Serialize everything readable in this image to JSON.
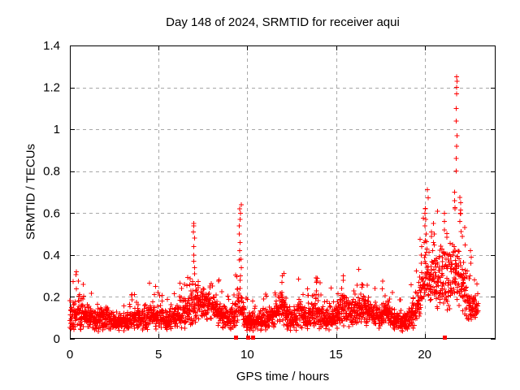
{
  "chart_data": {
    "type": "scatter",
    "title": "Day 148 of 2024, SRMTID for receiver aqui",
    "xlabel": "GPS time / hours",
    "ylabel": "SRMTID / TECUs",
    "xlim": [
      0,
      24
    ],
    "ylim": [
      0,
      1.4
    ],
    "xticks": [
      [
        0,
        "0"
      ],
      [
        5,
        "5"
      ],
      [
        10,
        "10"
      ],
      [
        15,
        "15"
      ],
      [
        20,
        "20"
      ]
    ],
    "yticks": [
      [
        0,
        "0"
      ],
      [
        0.2,
        "0.2"
      ],
      [
        0.4,
        "0.4"
      ],
      [
        0.6,
        "0.6"
      ],
      [
        0.8,
        "0.8"
      ],
      [
        1,
        "1"
      ],
      [
        1.2,
        "1.2"
      ],
      [
        1.4,
        "1.4"
      ]
    ],
    "grid": true,
    "legend": null,
    "marker": "plus",
    "colors": {
      "marker": "#ff0000",
      "grid": "#a8a8a8",
      "axis": "#000000",
      "background": "#ffffff"
    },
    "series_description": "SRMTID scintillation-like index vs GPS time; dense noisy band ~0.1 TECU with storm-time spikes",
    "baseline": {
      "start_hour": 0,
      "end_hour": 23.0,
      "points_per_hour": 115,
      "seed": 148,
      "envelope": [
        [
          0,
          0.11,
          0.06
        ],
        [
          0.5,
          0.13,
          0.07
        ],
        [
          1,
          0.11,
          0.06
        ],
        [
          1.5,
          0.09,
          0.045
        ],
        [
          2,
          0.1,
          0.05
        ],
        [
          2.5,
          0.085,
          0.04
        ],
        [
          3,
          0.085,
          0.04
        ],
        [
          3.5,
          0.09,
          0.045
        ],
        [
          4,
          0.095,
          0.05
        ],
        [
          4.5,
          0.11,
          0.06
        ],
        [
          5,
          0.1,
          0.05
        ],
        [
          5.5,
          0.09,
          0.045
        ],
        [
          6,
          0.1,
          0.05
        ],
        [
          6.3,
          0.13,
          0.065
        ],
        [
          6.6,
          0.12,
          0.06
        ],
        [
          6.9,
          0.15,
          0.08
        ],
        [
          7.1,
          0.17,
          0.09
        ],
        [
          7.4,
          0.15,
          0.075
        ],
        [
          7.7,
          0.16,
          0.075
        ],
        [
          8,
          0.17,
          0.08
        ],
        [
          8.3,
          0.13,
          0.06
        ],
        [
          8.7,
          0.1,
          0.05
        ],
        [
          9,
          0.09,
          0.045
        ],
        [
          9.3,
          0.11,
          0.055
        ],
        [
          9.55,
          0.18,
          0.1
        ],
        [
          9.7,
          0.14,
          0.08
        ],
        [
          9.9,
          0.09,
          0.045
        ],
        [
          10.2,
          0.08,
          0.04
        ],
        [
          10.6,
          0.08,
          0.04
        ],
        [
          11,
          0.09,
          0.045
        ],
        [
          11.4,
          0.1,
          0.05
        ],
        [
          11.8,
          0.14,
          0.07
        ],
        [
          12,
          0.16,
          0.085
        ],
        [
          12.3,
          0.1,
          0.05
        ],
        [
          12.6,
          0.085,
          0.045
        ],
        [
          12.9,
          0.13,
          0.065
        ],
        [
          13.2,
          0.1,
          0.05
        ],
        [
          13.5,
          0.095,
          0.05
        ],
        [
          13.9,
          0.15,
          0.08
        ],
        [
          14.2,
          0.1,
          0.05
        ],
        [
          14.5,
          0.085,
          0.045
        ],
        [
          14.8,
          0.12,
          0.06
        ],
        [
          15.1,
          0.115,
          0.055
        ],
        [
          15.4,
          0.16,
          0.08
        ],
        [
          15.8,
          0.12,
          0.06
        ],
        [
          16.1,
          0.125,
          0.06
        ],
        [
          16.4,
          0.15,
          0.075
        ],
        [
          16.8,
          0.13,
          0.065
        ],
        [
          17.2,
          0.115,
          0.055
        ],
        [
          17.6,
          0.115,
          0.055
        ],
        [
          18,
          0.125,
          0.06
        ],
        [
          18.4,
          0.09,
          0.045
        ],
        [
          18.8,
          0.08,
          0.04
        ],
        [
          19.2,
          0.1,
          0.05
        ],
        [
          19.6,
          0.17,
          0.09
        ],
        [
          19.9,
          0.25,
          0.12
        ],
        [
          20.1,
          0.3,
          0.15
        ],
        [
          20.4,
          0.27,
          0.13
        ],
        [
          20.7,
          0.29,
          0.14
        ],
        [
          21,
          0.29,
          0.145
        ],
        [
          21.3,
          0.27,
          0.135
        ],
        [
          21.6,
          0.3,
          0.15
        ],
        [
          21.9,
          0.31,
          0.155
        ],
        [
          22.2,
          0.24,
          0.12
        ],
        [
          22.5,
          0.15,
          0.07
        ],
        [
          22.8,
          0.15,
          0.05
        ],
        [
          23,
          0.14,
          0.04
        ]
      ]
    },
    "spike_columns": [
      {
        "hour": 7.0,
        "width": 0.08,
        "values": [
          0.31,
          0.34,
          0.37,
          0.4,
          0.44,
          0.48,
          0.51,
          0.54,
          0.55
        ]
      },
      {
        "hour": 9.6,
        "width": 0.12,
        "values": [
          0.3,
          0.34,
          0.38,
          0.42,
          0.46,
          0.5,
          0.54,
          0.57,
          0.6,
          0.62,
          0.64
        ]
      },
      {
        "hour": 12.0,
        "width": 0.08,
        "values": [
          0.27,
          0.3
        ]
      },
      {
        "hour": 13.9,
        "width": 0.08,
        "values": [
          0.27,
          0.29
        ]
      },
      {
        "hour": 15.45,
        "width": 0.08,
        "values": [
          0.28,
          0.3
        ]
      },
      {
        "hour": 16.5,
        "width": 0.08,
        "values": [
          0.26
        ]
      },
      {
        "hour": 19.8,
        "width": 0.1,
        "values": [
          0.36,
          0.4,
          0.44
        ]
      },
      {
        "hour": 20.05,
        "width": 0.1,
        "values": [
          0.47,
          0.5,
          0.54,
          0.57,
          0.6,
          0.62
        ]
      },
      {
        "hour": 20.5,
        "width": 0.1,
        "values": [
          0.46,
          0.5,
          0.55
        ]
      },
      {
        "hour": 21.1,
        "width": 0.1,
        "values": [
          0.52,
          0.56,
          0.6
        ]
      },
      {
        "hour": 21.7,
        "width": 0.08,
        "values": [
          0.62,
          0.66,
          0.7
        ]
      },
      {
        "hour": 21.8,
        "width": 0.04,
        "values": [
          0.8,
          0.86,
          0.92,
          0.97,
          1.04,
          1.1,
          1.17,
          1.2,
          1.23,
          1.25
        ]
      },
      {
        "hour": 22.0,
        "width": 0.08,
        "values": [
          0.56,
          0.6,
          0.65
        ]
      },
      {
        "hour": 22.6,
        "width": 0.08,
        "values": [
          0.36,
          0.39,
          0.42
        ]
      }
    ],
    "zero_flag_hours": [
      9.35,
      10.05,
      10.3,
      21.1
    ]
  }
}
